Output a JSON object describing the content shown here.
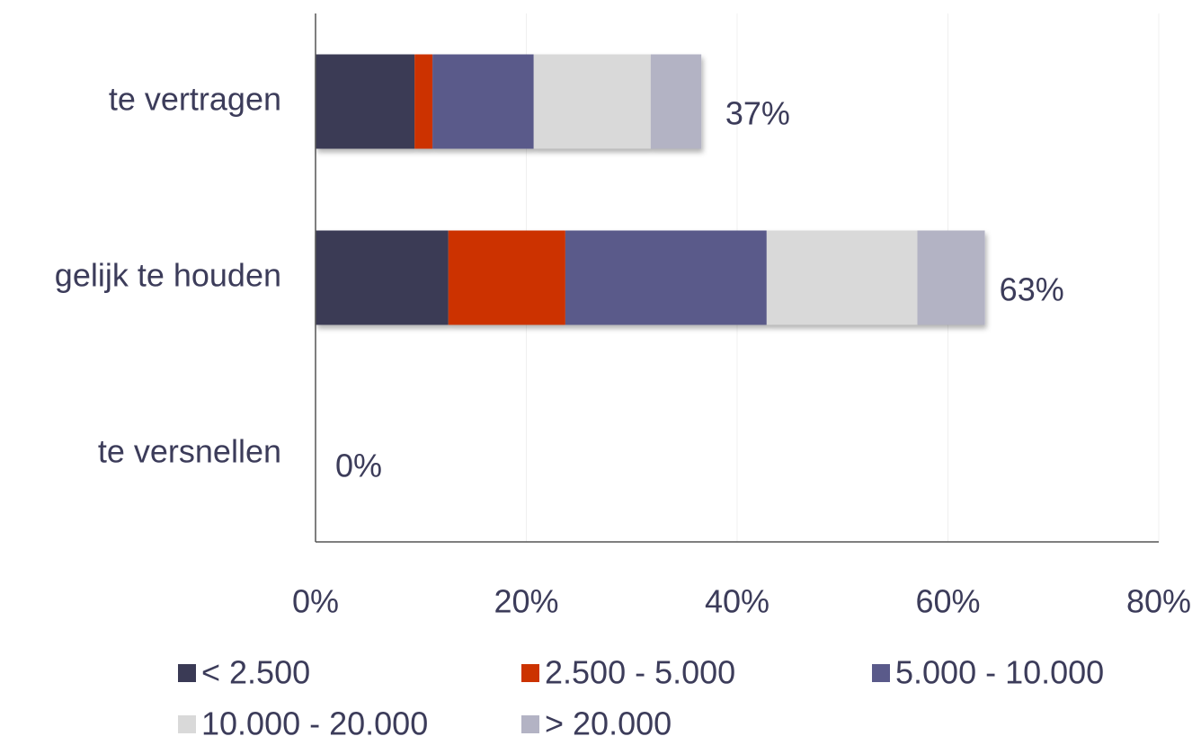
{
  "chart_data": {
    "type": "stacked-bar-horizontal",
    "categories": [
      "te vertragen",
      "gelijk te houden",
      "te versnellen"
    ],
    "series": [
      {
        "name": "< 2.500",
        "color": "#3a3a55",
        "values": [
          9.4,
          12.6,
          0
        ]
      },
      {
        "name": "2.500 - 5.000",
        "color": "#cc3300",
        "values": [
          1.7,
          11.1,
          0
        ]
      },
      {
        "name": "5.000 - 10.000",
        "color": "#5a5a8a",
        "values": [
          9.6,
          19.1,
          0
        ]
      },
      {
        "name": "10.000 - 20.000",
        "color": "#d9d9d9",
        "values": [
          11.1,
          14.3,
          0
        ]
      },
      {
        "name": "> 20.000",
        "color": "#b3b3c4",
        "values": [
          4.8,
          6.4,
          0
        ]
      }
    ],
    "totals": [
      37,
      63,
      0
    ],
    "total_labels": [
      "37%",
      "63%",
      "0%"
    ],
    "xlim": [
      0,
      80
    ],
    "xticks": [
      {
        "value": 0,
        "label": "0%"
      },
      {
        "value": 20,
        "label": "20%"
      },
      {
        "value": 40,
        "label": "40%"
      },
      {
        "value": 60,
        "label": "60%"
      },
      {
        "value": 80,
        "label": "80%"
      }
    ],
    "grid": true,
    "legend": "bottom"
  }
}
